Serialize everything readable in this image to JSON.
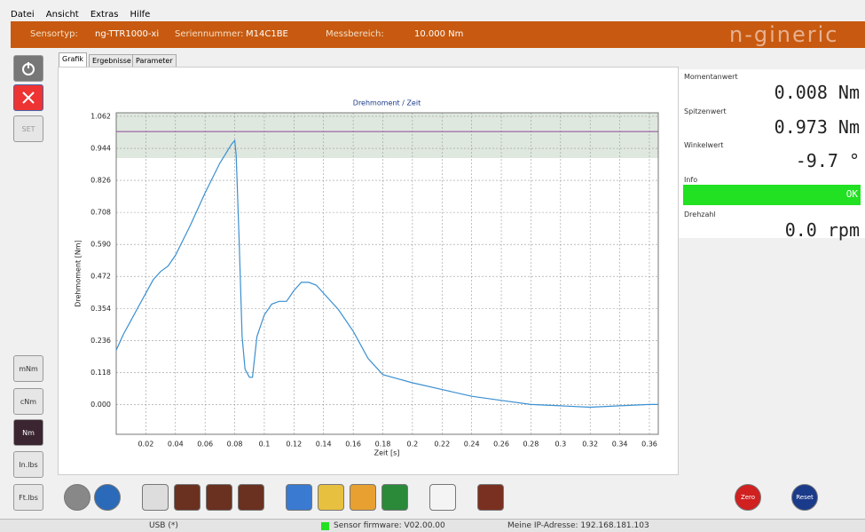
{
  "menu": [
    "Datei",
    "Ansicht",
    "Extras",
    "Hilfe"
  ],
  "header": {
    "sensortyp_label": "Sensortyp:",
    "sensortyp": "ng-TTR1000-xi",
    "serien_label": "Seriennummer:",
    "serien": "M14C1BE",
    "bereich_label": "Messbereich:",
    "bereich": "10.000 Nm",
    "logo": "n-gineric"
  },
  "left_buttons": {
    "set": "SET",
    "units": [
      "mNm",
      "cNm",
      "Nm",
      "In.lbs",
      "Ft.lbs"
    ]
  },
  "tabs": [
    "Grafik",
    "Ergebnisse",
    "Parameter"
  ],
  "chart": {
    "type": "line",
    "title": "Drehmoment / Zeit",
    "x_label": "Zeit [s]",
    "y_label": "Drehmoment [Nm]",
    "color": "#3a8fd0",
    "limit_line": 1.006,
    "tolerance_band": [
      0.908,
      1.075
    ],
    "x": [
      0,
      0.005,
      0.01,
      0.015,
      0.02,
      0.025,
      0.03,
      0.035,
      0.04,
      0.05,
      0.06,
      0.07,
      0.078,
      0.08,
      0.081,
      0.083,
      0.085,
      0.087,
      0.09,
      0.092,
      0.095,
      0.1,
      0.105,
      0.11,
      0.115,
      0.12,
      0.125,
      0.13,
      0.135,
      0.14,
      0.15,
      0.16,
      0.17,
      0.18,
      0.19,
      0.2,
      0.22,
      0.24,
      0.26,
      0.28,
      0.3,
      0.32,
      0.34,
      0.36,
      0.366
    ],
    "values": [
      0.2,
      0.26,
      0.31,
      0.36,
      0.41,
      0.46,
      0.49,
      0.51,
      0.55,
      0.66,
      0.78,
      0.89,
      0.96,
      0.973,
      0.92,
      0.6,
      0.25,
      0.13,
      0.1,
      0.1,
      0.25,
      0.33,
      0.37,
      0.38,
      0.38,
      0.42,
      0.45,
      0.45,
      0.44,
      0.41,
      0.35,
      0.27,
      0.17,
      0.11,
      0.095,
      0.08,
      0.055,
      0.03,
      0.015,
      0.0,
      -0.005,
      -0.01,
      -0.005,
      0.0,
      0.0
    ],
    "xlim": [
      0,
      0.366
    ],
    "ylim": [
      -0.11,
      1.075
    ],
    "xticks": [
      0.02,
      0.04,
      0.06,
      0.08,
      0.1,
      0.12,
      0.14,
      0.16,
      0.18,
      0.2,
      0.22,
      0.24,
      0.26,
      0.28,
      0.3,
      0.32,
      0.34,
      0.36
    ],
    "yticks": [
      {
        "value": 0,
        "label": "0.000"
      },
      0.118,
      0.236,
      0.354,
      0.472,
      {
        "value": 0.59,
        "label": "0.590"
      },
      0.708,
      0.826,
      0.944,
      1.062
    ],
    "grid": true
  },
  "readouts": [
    {
      "label": "Momentanwert",
      "value": "0.008 Nm"
    },
    {
      "label": "Spitzenwert",
      "value": "0.973 Nm"
    },
    {
      "label": "Winkelwert",
      "value": "-9.7 °"
    },
    {
      "label": "Info",
      "value": "OK"
    },
    {
      "label": "Drehzahl",
      "value": "0.0 rpm"
    }
  ],
  "toolbar": {
    "zero": "Zero",
    "reset": "Reset"
  },
  "status": {
    "usb": "USB (*)",
    "firmware": "Sensor firmware: V02.00.00",
    "ip": "Meine IP-Adresse: 192.168.181.103"
  }
}
